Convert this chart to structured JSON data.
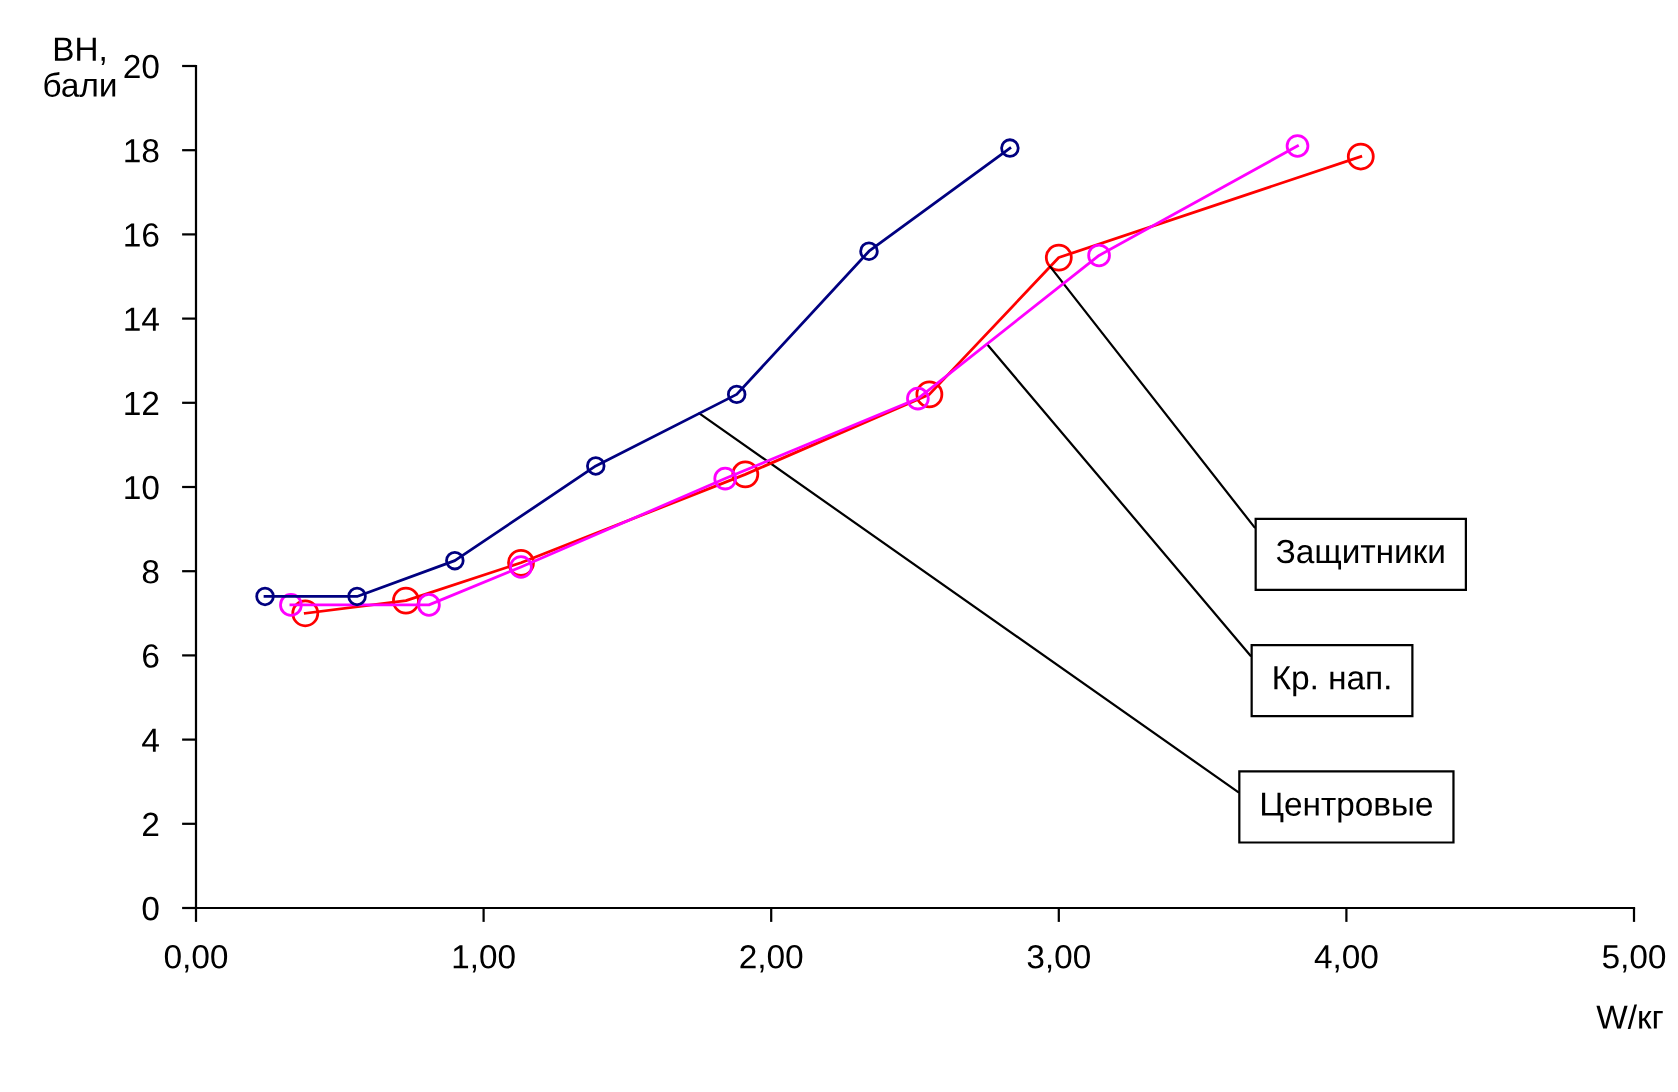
{
  "chart_data": {
    "type": "line",
    "ylabel": "ВН,\nбали",
    "xlabel": "W/кг",
    "xlim": [
      0,
      5
    ],
    "xticks": [
      {
        "value": 0,
        "label": "0,00"
      },
      {
        "value": 1,
        "label": "1,00"
      },
      {
        "value": 2,
        "label": "2,00"
      },
      {
        "value": 3,
        "label": "3,00"
      },
      {
        "value": 4,
        "label": "4,00"
      },
      {
        "value": 5,
        "label": "5,00"
      }
    ],
    "ylim": [
      0,
      20
    ],
    "yticks": [
      0,
      2,
      4,
      6,
      8,
      10,
      12,
      14,
      16,
      18,
      20
    ],
    "grid": false,
    "legend": false,
    "marker": "circle",
    "line_style": "solid",
    "series": [
      {
        "name": "Центровые",
        "color": "#000080",
        "x": [
          0.24,
          0.56,
          0.9,
          1.39,
          1.88,
          2.34,
          2.83
        ],
        "values": [
          7.4,
          7.4,
          8.25,
          10.5,
          12.2,
          15.6,
          18.05
        ]
      },
      {
        "name": "Кр. нап.",
        "color": "#ff00ff",
        "x": [
          0.33,
          0.81,
          1.13,
          1.84,
          2.51,
          3.14,
          3.83
        ],
        "values": [
          7.2,
          7.2,
          8.1,
          10.2,
          12.1,
          15.5,
          18.1
        ]
      },
      {
        "name": "Защитники",
        "color": "#ff0000",
        "x": [
          0.38,
          0.73,
          1.13,
          1.91,
          2.55,
          3.0,
          4.05
        ],
        "values": [
          7.0,
          7.3,
          8.2,
          10.3,
          12.2,
          15.45,
          17.85
        ]
      }
    ]
  }
}
